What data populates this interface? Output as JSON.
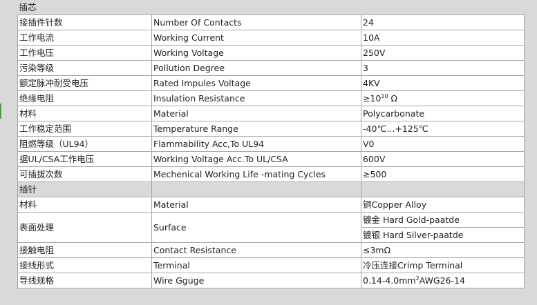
{
  "sections": [
    {
      "title": "插芯",
      "rows": [
        {
          "cn": "接插件针数",
          "en": "Number Of Contacts",
          "value": "24"
        },
        {
          "cn": "工作电流",
          "en": "Working Current",
          "value": "10A"
        },
        {
          "cn": "工作电压",
          "en": "Working Voltage",
          "value": "250V"
        },
        {
          "cn": "污染等级",
          "en": "Pollution Degree",
          "value": "3"
        },
        {
          "cn": "额定脉冲耐受电压",
          "en": "Rated Impules Voltage",
          "value": "4KV"
        },
        {
          "cn": "绝缘电阻",
          "en": "Insulation Resistance",
          "value_pre": "≥10",
          "value_sup": "10",
          "value_post": " Ω"
        },
        {
          "cn": "材料",
          "en": "Material",
          "value": "Polycarbonate"
        },
        {
          "cn": "工作稳定范围",
          "en": "Temperature Range",
          "value": "-40℃...+125℃"
        },
        {
          "cn": "阻燃等级（UL94）",
          "en": "Flammability Acc,To UL94",
          "value": "V0"
        },
        {
          "cn": "据UL/CSA工作电压",
          "en": "Working Voltage Acc.To UL/CSA",
          "value": "600V"
        },
        {
          "cn": "可插拔次数",
          "en": "Mechenical Working Life -mating Cycles",
          "value": "≥500"
        }
      ]
    },
    {
      "title": "插针",
      "rows": [
        {
          "cn": "材料",
          "en": "Material",
          "value": "铜Copper Alloy"
        },
        {
          "cn": "表面处理",
          "en": "Surface",
          "value": "镀金 Hard Gold-paatde",
          "value2": "镀银 Hard Silver-paatde"
        },
        {
          "cn": "接触电阻",
          "en": "Contact Resistance",
          "value": "≤3mΩ"
        },
        {
          "cn": "接线形式",
          "en": "Terminal",
          "value": "冷压连接Crimp Terminal"
        },
        {
          "cn": "导线规格",
          "en": "Wire Gguge",
          "value_pre": "0.14-4.0mm",
          "value_sup": "2",
          "value_post": "AWG26-14"
        }
      ]
    }
  ]
}
